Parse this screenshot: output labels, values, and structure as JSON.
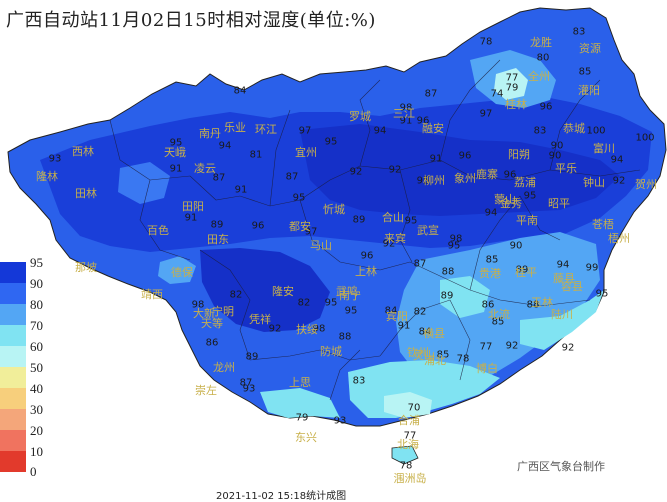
{
  "title": "广西自动站11月02日15时相对湿度(单位:%)",
  "legend": {
    "ticks": [
      "95",
      "90",
      "80",
      "70",
      "60",
      "50",
      "40",
      "30",
      "20",
      "10",
      "0"
    ],
    "colors": [
      "#1438d8",
      "#2f67f2",
      "#53a6f4",
      "#80e3f2",
      "#b8f4f4",
      "#f1ee9a",
      "#f7cf7c",
      "#f4a67a",
      "#f0735f",
      "#e23a2c",
      "#c80d0d"
    ]
  },
  "humidity_values": [
    "78",
    "83",
    "80",
    "85",
    "77",
    "79",
    "74",
    "96",
    "97",
    "83",
    "87",
    "98",
    "91",
    "96",
    "100",
    "90",
    "100",
    "97",
    "84",
    "81",
    "95",
    "94",
    "93",
    "95",
    "94",
    "91",
    "87",
    "87",
    "91",
    "95",
    "92",
    "92",
    "95",
    "91",
    "96",
    "96",
    "90",
    "95",
    "94",
    "92",
    "91",
    "89",
    "96",
    "97",
    "89",
    "95",
    "96",
    "92",
    "98",
    "90",
    "89",
    "94",
    "88",
    "95",
    "85",
    "87",
    "94",
    "99",
    "95",
    "89",
    "86",
    "85",
    "82",
    "91",
    "88",
    "82",
    "92",
    "82",
    "95",
    "98",
    "95",
    "84",
    "98",
    "86",
    "89",
    "87",
    "93",
    "88",
    "77",
    "92",
    "84",
    "79",
    "93",
    "83",
    "70",
    "78",
    "77",
    "85",
    "78",
    "92"
  ],
  "place_names": [
    "龙胜",
    "资源",
    "全州",
    "灌阳",
    "桂林",
    "融安",
    "三江",
    "罗城",
    "环江",
    "南丹",
    "天峨",
    "乐业",
    "凌云",
    "西林",
    "隆林",
    "田林",
    "百色",
    "田阳",
    "田东",
    "德保",
    "靖西",
    "那坡",
    "大新",
    "天等",
    "隆安",
    "宜州",
    "都安",
    "马山",
    "上林",
    "武鸣",
    "宾阳",
    "南宁",
    "横县",
    "柳州",
    "象州",
    "来宾",
    "鹿寨",
    "忻城",
    "合山",
    "武宣",
    "金秀",
    "平南",
    "桂平",
    "贵港",
    "藤县",
    "苍梧",
    "梧州",
    "贺州",
    "钟山",
    "富川",
    "昭平",
    "蒙山",
    "荔浦",
    "平乐",
    "阳朔",
    "恭城",
    "容县",
    "北流",
    "玉林",
    "陆川",
    "博白",
    "浦北",
    "灵山",
    "钦州",
    "防城",
    "东兴",
    "北海",
    "合浦",
    "涠洲岛",
    "凭祥",
    "宁明",
    "崇左",
    "扶绥",
    "上思",
    "龙州"
  ],
  "credit": "广西区气象台制作",
  "footer": "2021-11-02 15:18统计成图"
}
